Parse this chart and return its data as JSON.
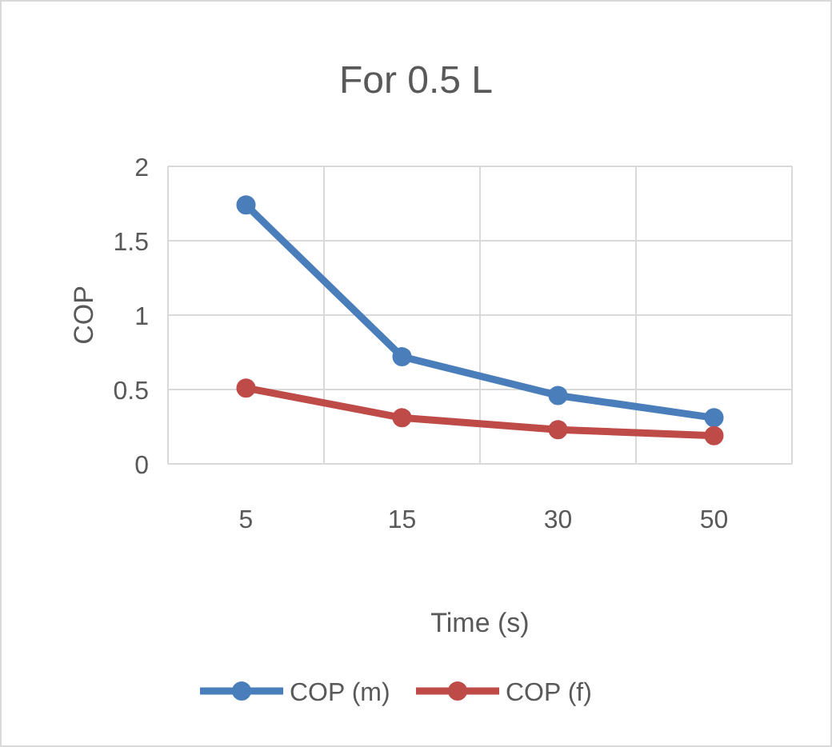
{
  "chart_data": {
    "type": "line",
    "title": "For 0.5 L",
    "xlabel": "Time (s)",
    "ylabel": "COP",
    "categories": [
      "5",
      "15",
      "30",
      "50"
    ],
    "series": [
      {
        "name": "COP (m)",
        "color": "#4a7ebb",
        "values": [
          1.74,
          0.72,
          0.46,
          0.31
        ]
      },
      {
        "name": "COP (f)",
        "color": "#be4b48",
        "values": [
          0.51,
          0.31,
          0.23,
          0.19
        ]
      }
    ],
    "ylim": [
      0,
      2
    ],
    "yticks": [
      0,
      0.5,
      1,
      1.5,
      2
    ],
    "grid": true,
    "legend": "bottom",
    "marker": "circle",
    "line_style": "solid"
  }
}
